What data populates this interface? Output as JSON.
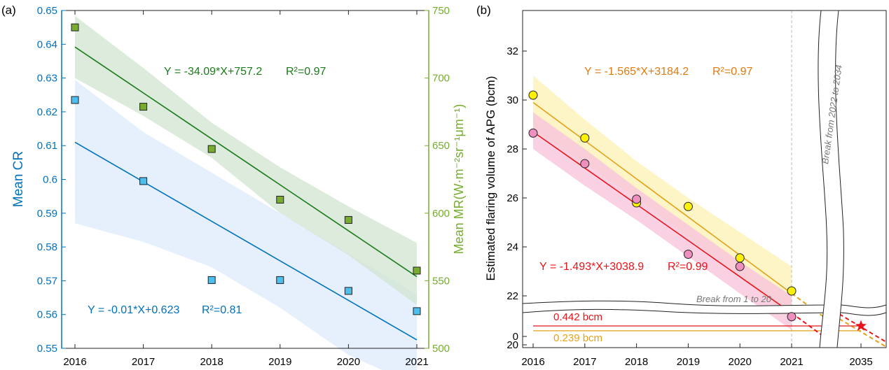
{
  "chart_data": [
    {
      "type": "scatter",
      "panel_label": "(a)",
      "x": [
        2016,
        2017,
        2018,
        2019,
        2020,
        2021
      ],
      "x_ticks": [
        "2016",
        "2017",
        "2018",
        "2019",
        "2020",
        "2021"
      ],
      "ylabel": "Mean CR",
      "ylabel2": "Mean MR(W·m⁻²sr⁻¹μm⁻¹)",
      "ylim": [
        0.55,
        0.65
      ],
      "ylim2": [
        500,
        750
      ],
      "y_ticks": [
        "0.55",
        "0.56",
        "0.57",
        "0.58",
        "0.59",
        "0.6",
        "0.61",
        "0.62",
        "0.63",
        "0.64",
        "0.65"
      ],
      "y2_ticks": [
        "500",
        "550",
        "600",
        "650",
        "700",
        "750"
      ],
      "colors": {
        "cr": "#0072BD",
        "cr_marker": "#4DBEEE",
        "cr_band": "#dce9fb",
        "mr": "#1B7A1B",
        "mr_marker": "#77AC30",
        "mr_band": "#cfe3cf",
        "axis2": "#77AC30"
      },
      "series": [
        {
          "axis": "left",
          "values": [
            0.6235,
            0.5995,
            0.5702,
            0.5702,
            0.567,
            0.561
          ],
          "fit": [
            0.611,
            0.5993,
            0.5876,
            0.5759,
            0.5642,
            0.5525
          ],
          "ci_upper": [
            0.6295,
            0.614,
            0.602,
            0.59,
            0.578,
            0.566
          ],
          "ci_lower": [
            0.587,
            0.5815,
            0.574,
            0.562,
            0.548,
            0.539
          ],
          "equation": "Y = -0.01*X+0.623",
          "r2": "R²=0.81"
        },
        {
          "axis": "right",
          "values": [
            737.5,
            678.8,
            647.5,
            610,
            595,
            557.5
          ],
          "fit": [
            723,
            689,
            655,
            621,
            587,
            553
          ],
          "ci_upper": [
            746,
            707.5,
            667,
            634,
            605,
            578
          ],
          "ci_lower": [
            700,
            672,
            641,
            600,
            569,
            532
          ],
          "equation": "Y = -34.09*X+757.2",
          "r2": "R²=0.97"
        }
      ]
    },
    {
      "type": "scatter",
      "panel_label": "(b)",
      "x": [
        2016,
        2017,
        2018,
        2019,
        2020,
        2021
      ],
      "x_ticks": [
        "2016",
        "2017",
        "2018",
        "2019",
        "2020",
        "2021",
        "2035"
      ],
      "ylabel": "Estimated flaring volume of APG (bcm)",
      "y_ticks": [
        "0",
        "20",
        "22",
        "24",
        "26",
        "28",
        "30",
        "32"
      ],
      "axis_breaks": {
        "x": "Break from 2022 to 2034",
        "y": "Break from 1 to 20"
      },
      "colors": {
        "yellow_marker": "#FFF200",
        "yellow_line": "#E3A21A",
        "yellow_text": "#E07B10",
        "yellow_band": "#fdf3b8",
        "pink_marker": "#EE8FC0",
        "red_line": "#E8141A",
        "pink_band": "#f9c4dc"
      },
      "series": [
        {
          "values": [
            30.2,
            28.45,
            25.8,
            25.65,
            23.55,
            22.2
          ],
          "fit": [
            29.9,
            28.34,
            26.78,
            25.22,
            23.66,
            22.1
          ],
          "ci_upper": [
            31.0,
            29.2,
            27.5,
            26.0,
            24.6,
            23.2
          ],
          "ci_lower": [
            28.8,
            27.4,
            26.0,
            24.4,
            22.8,
            21.0
          ],
          "equation": "Y = -1.565*X+3184.2",
          "r2": "R²=0.97",
          "projection_2035": 0.239,
          "projection_label": "0.239 bcm"
        },
        {
          "values": [
            28.65,
            27.4,
            25.95,
            23.7,
            23.2,
            21.15
          ],
          "fit": [
            28.7,
            27.22,
            25.74,
            24.26,
            22.78,
            21.3
          ],
          "ci_upper": [
            29.5,
            28.0,
            26.4,
            24.9,
            23.4,
            22.0
          ],
          "ci_lower": [
            28.0,
            26.5,
            25.1,
            23.6,
            22.1,
            20.6
          ],
          "equation": "Y = -1.493*X+3038.9",
          "r2": "R²=0.99",
          "projection_2035": 0.442,
          "projection_label": "0.442 bcm"
        }
      ]
    }
  ]
}
